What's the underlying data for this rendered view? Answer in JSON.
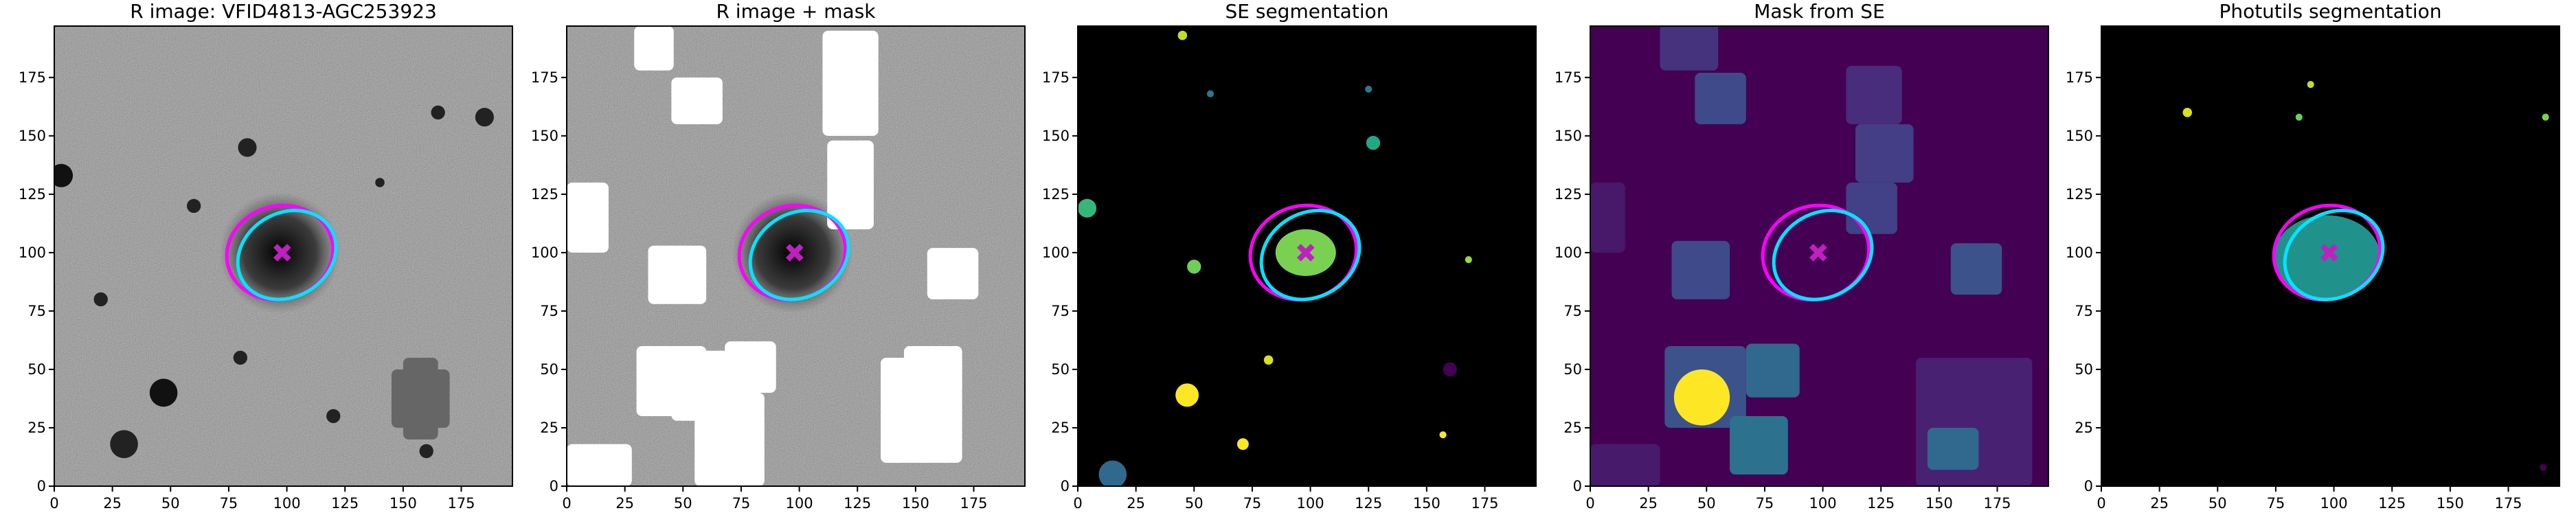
{
  "chart_data": [
    {
      "type": "image",
      "title": "R image: VFID4813-AGC253923",
      "background": "#808080",
      "xlim": [
        0,
        197
      ],
      "ylim": [
        0,
        197
      ],
      "xticks": [
        0,
        25,
        50,
        75,
        100,
        125,
        150,
        175
      ],
      "yticks": [
        0,
        25,
        50,
        75,
        100,
        125,
        150,
        175
      ],
      "ellipses": [
        {
          "color": "#ff00ff",
          "x": 97,
          "y": 100,
          "a": 23,
          "b": 20,
          "angle": 15
        },
        {
          "color": "#00e5ff",
          "x": 100,
          "y": 99,
          "a": 22,
          "b": 18,
          "angle": 30
        }
      ],
      "marker": {
        "x": 98,
        "y": 100,
        "color": "#c020c0"
      }
    },
    {
      "type": "image",
      "title": "R image + mask",
      "background": "#808080",
      "xlim": [
        0,
        197
      ],
      "ylim": [
        0,
        197
      ],
      "xticks": [
        0,
        25,
        50,
        75,
        100,
        125,
        150,
        175
      ],
      "yticks": [
        0,
        25,
        50,
        75,
        100,
        125,
        150,
        175
      ],
      "ellipses": [
        {
          "color": "#ff00ff",
          "x": 97,
          "y": 100,
          "a": 23,
          "b": 20,
          "angle": 15
        },
        {
          "color": "#00e5ff",
          "x": 100,
          "y": 99,
          "a": 22,
          "b": 18,
          "angle": 30
        }
      ],
      "marker": {
        "x": 98,
        "y": 100,
        "color": "#c020c0"
      }
    },
    {
      "type": "image",
      "title": "SE segmentation",
      "background": "#000000",
      "xlim": [
        0,
        197
      ],
      "ylim": [
        0,
        197
      ],
      "xticks": [
        0,
        25,
        50,
        75,
        100,
        125,
        150,
        175
      ],
      "yticks": [
        0,
        25,
        50,
        75,
        100,
        125,
        150,
        175
      ],
      "ellipses": [
        {
          "color": "#ff00ff",
          "x": 97,
          "y": 100,
          "a": 23,
          "b": 20,
          "angle": 15
        },
        {
          "color": "#00e5ff",
          "x": 100,
          "y": 99,
          "a": 22,
          "b": 18,
          "angle": 30
        }
      ],
      "marker": {
        "x": 98,
        "y": 100,
        "color": "#c020c0"
      }
    },
    {
      "type": "image",
      "title": "Mask from SE",
      "background": "#440154",
      "xlim": [
        0,
        197
      ],
      "ylim": [
        0,
        197
      ],
      "xticks": [
        0,
        25,
        50,
        75,
        100,
        125,
        150,
        175
      ],
      "yticks": [
        0,
        25,
        50,
        75,
        100,
        125,
        150,
        175
      ],
      "ellipses": [
        {
          "color": "#ff00ff",
          "x": 97,
          "y": 100,
          "a": 23,
          "b": 20,
          "angle": 15
        },
        {
          "color": "#00e5ff",
          "x": 100,
          "y": 99,
          "a": 22,
          "b": 18,
          "angle": 30
        }
      ],
      "marker": {
        "x": 98,
        "y": 100,
        "color": "#c020c0"
      }
    },
    {
      "type": "image",
      "title": "Photutils segmentation",
      "background": "#000000",
      "xlim": [
        0,
        197
      ],
      "ylim": [
        0,
        197
      ],
      "xticks": [
        0,
        25,
        50,
        75,
        100,
        125,
        150,
        175
      ],
      "yticks": [
        0,
        25,
        50,
        75,
        100,
        125,
        150,
        175
      ],
      "ellipses": [
        {
          "color": "#ff00ff",
          "x": 97,
          "y": 100,
          "a": 23,
          "b": 20,
          "angle": 15
        },
        {
          "color": "#00e5ff",
          "x": 100,
          "y": 99,
          "a": 22,
          "b": 18,
          "angle": 30
        }
      ],
      "marker": {
        "x": 98,
        "y": 100,
        "color": "#c020c0"
      }
    }
  ]
}
